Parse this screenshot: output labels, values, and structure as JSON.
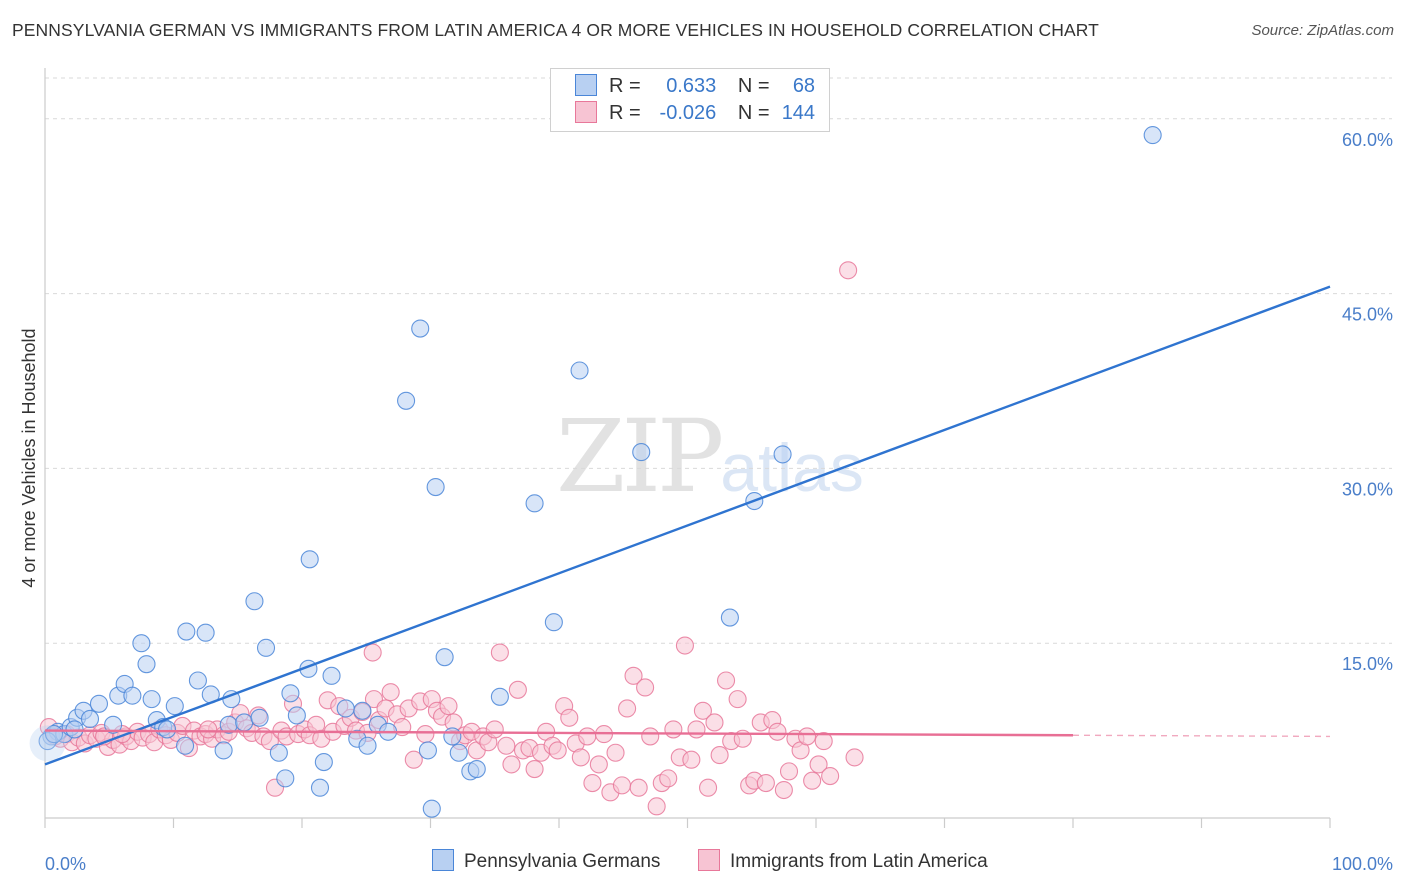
{
  "title": "PENNSYLVANIA GERMAN VS IMMIGRANTS FROM LATIN AMERICA 4 OR MORE VEHICLES IN HOUSEHOLD CORRELATION CHART",
  "source": "Source: ZipAtlas.com",
  "watermark": {
    "zip": "ZIP",
    "atlas": "atlas"
  },
  "colors": {
    "blue": "#4a86d8",
    "blue_fill": "#b8d0f2",
    "blue_line": "#2f74d0",
    "pink": "#e8789a",
    "pink_fill": "#f7c4d3",
    "pink_line": "#e86f95",
    "grid": "#d9d9d9",
    "axis": "#cccccc",
    "tick_text": "#4a7ec9"
  },
  "legend": {
    "rows": [
      {
        "r_label": "R =",
        "r_value": " 0.633",
        "n_label": "N =",
        "n_value": " 68"
      },
      {
        "r_label": "R =",
        "r_value": "-0.026",
        "n_label": "N =",
        "n_value": "144"
      }
    ]
  },
  "bottom_legend": {
    "blue": "Pennsylvania Germans",
    "pink": "Immigrants from Latin America"
  },
  "chart_data": {
    "type": "scatter",
    "xlabel": "",
    "ylabel": "4 or more Vehicles in Household",
    "xlim": [
      0,
      100
    ],
    "ylim": [
      0,
      63.5
    ],
    "x_tick_labels": [
      "0.0%",
      "100.0%"
    ],
    "y_ticks": [
      15,
      30,
      45,
      60
    ],
    "y_tick_labels": [
      "15.0%",
      "30.0%",
      "45.0%",
      "60.0%"
    ],
    "grid": true,
    "series": [
      {
        "name": "Pennsylvania Germans",
        "color": "#4a86d8",
        "r": 0.633,
        "n": 68,
        "trend": {
          "x0": 0,
          "y0": 4.6,
          "x1": 100,
          "y1": 45.6
        },
        "points": [
          [
            0.5,
            7.0
          ],
          [
            1.0,
            7.4
          ],
          [
            1.5,
            7.2
          ],
          [
            2.0,
            7.8
          ],
          [
            2.5,
            8.6
          ],
          [
            3.0,
            9.2
          ],
          [
            3.5,
            8.5
          ],
          [
            4.2,
            9.8
          ],
          [
            5.3,
            8.0
          ],
          [
            5.7,
            10.5
          ],
          [
            6.2,
            11.5
          ],
          [
            6.8,
            10.5
          ],
          [
            7.5,
            15.0
          ],
          [
            7.9,
            13.2
          ],
          [
            8.3,
            10.2
          ],
          [
            8.7,
            8.4
          ],
          [
            9.2,
            7.8
          ],
          [
            9.5,
            7.6
          ],
          [
            10.1,
            9.6
          ],
          [
            10.9,
            6.2
          ],
          [
            11.0,
            16.0
          ],
          [
            11.9,
            11.8
          ],
          [
            12.5,
            15.9
          ],
          [
            12.9,
            10.6
          ],
          [
            13.9,
            5.8
          ],
          [
            14.3,
            8.0
          ],
          [
            14.5,
            10.2
          ],
          [
            15.5,
            8.2
          ],
          [
            16.3,
            18.6
          ],
          [
            16.7,
            8.6
          ],
          [
            17.2,
            14.6
          ],
          [
            18.2,
            5.6
          ],
          [
            18.7,
            3.4
          ],
          [
            19.1,
            10.7
          ],
          [
            19.6,
            8.8
          ],
          [
            20.5,
            12.8
          ],
          [
            20.6,
            22.2
          ],
          [
            21.4,
            2.6
          ],
          [
            21.7,
            4.8
          ],
          [
            22.3,
            12.2
          ],
          [
            23.4,
            9.4
          ],
          [
            24.3,
            6.8
          ],
          [
            24.7,
            9.2
          ],
          [
            25.1,
            6.2
          ],
          [
            25.9,
            8.0
          ],
          [
            26.7,
            7.4
          ],
          [
            28.1,
            35.8
          ],
          [
            29.2,
            42.0
          ],
          [
            29.8,
            5.8
          ],
          [
            30.1,
            0.8
          ],
          [
            30.4,
            28.4
          ],
          [
            31.1,
            13.8
          ],
          [
            31.7,
            7.0
          ],
          [
            32.2,
            5.6
          ],
          [
            33.1,
            4.0
          ],
          [
            33.6,
            4.2
          ],
          [
            35.4,
            10.4
          ],
          [
            38.1,
            27.0
          ],
          [
            39.6,
            16.8
          ],
          [
            41.6,
            38.4
          ],
          [
            46.4,
            31.4
          ],
          [
            53.3,
            17.2
          ],
          [
            55.2,
            27.2
          ],
          [
            57.4,
            31.2
          ],
          [
            86.2,
            58.6
          ],
          [
            0.2,
            6.6
          ],
          [
            0.7,
            7.2
          ],
          [
            2.3,
            7.6
          ]
        ]
      },
      {
        "name": "Immigrants from Latin America",
        "color": "#e8789a",
        "r": -0.026,
        "n": 144,
        "trend": {
          "x0": 0,
          "y0": 7.5,
          "x1": 80,
          "y1": 7.1,
          "dash_to_x": 100,
          "dash_to_y": 7.0
        },
        "points": [
          [
            0.3,
            7.8
          ],
          [
            0.8,
            7.0
          ],
          [
            1.2,
            6.8
          ],
          [
            1.7,
            7.2
          ],
          [
            2.1,
            6.5
          ],
          [
            2.6,
            6.9
          ],
          [
            3.1,
            6.4
          ],
          [
            3.5,
            7.1
          ],
          [
            4.0,
            6.8
          ],
          [
            4.4,
            7.3
          ],
          [
            4.9,
            6.1
          ],
          [
            5.3,
            6.7
          ],
          [
            5.8,
            6.3
          ],
          [
            6.3,
            7.0
          ],
          [
            6.7,
            6.6
          ],
          [
            7.2,
            7.4
          ],
          [
            7.6,
            6.9
          ],
          [
            8.1,
            7.2
          ],
          [
            8.5,
            6.5
          ],
          [
            8.9,
            7.6
          ],
          [
            9.4,
            7.1
          ],
          [
            9.8,
            6.7
          ],
          [
            10.3,
            7.3
          ],
          [
            10.7,
            7.9
          ],
          [
            11.2,
            6.0
          ],
          [
            11.6,
            7.5
          ],
          [
            12.1,
            7.0
          ],
          [
            12.5,
            7.2
          ],
          [
            13.0,
            6.8
          ],
          [
            13.4,
            7.6
          ],
          [
            13.9,
            7.1
          ],
          [
            14.3,
            7.4
          ],
          [
            14.8,
            8.2
          ],
          [
            15.2,
            9.0
          ],
          [
            15.7,
            7.7
          ],
          [
            16.1,
            7.3
          ],
          [
            16.6,
            8.8
          ],
          [
            17.0,
            7.0
          ],
          [
            17.5,
            6.6
          ],
          [
            17.9,
            2.6
          ],
          [
            18.4,
            7.5
          ],
          [
            18.8,
            7.0
          ],
          [
            19.3,
            9.8
          ],
          [
            19.7,
            7.2
          ],
          [
            20.2,
            7.6
          ],
          [
            20.6,
            7.1
          ],
          [
            21.1,
            8.0
          ],
          [
            21.5,
            6.8
          ],
          [
            22.0,
            10.1
          ],
          [
            22.4,
            7.4
          ],
          [
            22.9,
            9.6
          ],
          [
            23.3,
            7.9
          ],
          [
            23.8,
            8.6
          ],
          [
            24.2,
            7.5
          ],
          [
            24.7,
            9.1
          ],
          [
            25.1,
            7.3
          ],
          [
            25.6,
            10.2
          ],
          [
            26.0,
            8.4
          ],
          [
            26.5,
            9.4
          ],
          [
            26.9,
            10.8
          ],
          [
            27.4,
            8.9
          ],
          [
            27.8,
            7.8
          ],
          [
            28.3,
            9.4
          ],
          [
            28.7,
            5.0
          ],
          [
            29.2,
            10.0
          ],
          [
            29.6,
            7.2
          ],
          [
            30.1,
            10.2
          ],
          [
            30.5,
            9.2
          ],
          [
            30.9,
            8.7
          ],
          [
            31.4,
            9.6
          ],
          [
            31.8,
            8.2
          ],
          [
            32.3,
            6.6
          ],
          [
            32.7,
            7.1
          ],
          [
            33.2,
            7.4
          ],
          [
            33.6,
            5.8
          ],
          [
            34.1,
            7.0
          ],
          [
            34.5,
            6.5
          ],
          [
            35.0,
            7.6
          ],
          [
            35.4,
            14.2
          ],
          [
            35.9,
            6.2
          ],
          [
            36.3,
            4.6
          ],
          [
            36.8,
            11.0
          ],
          [
            37.2,
            5.8
          ],
          [
            37.7,
            6.0
          ],
          [
            38.1,
            4.2
          ],
          [
            38.6,
            5.6
          ],
          [
            39.0,
            7.4
          ],
          [
            39.5,
            6.2
          ],
          [
            39.9,
            5.8
          ],
          [
            40.4,
            9.6
          ],
          [
            40.8,
            8.6
          ],
          [
            41.3,
            6.4
          ],
          [
            41.7,
            5.2
          ],
          [
            42.2,
            7.0
          ],
          [
            42.6,
            3.0
          ],
          [
            43.1,
            4.6
          ],
          [
            43.5,
            7.2
          ],
          [
            44.0,
            2.2
          ],
          [
            44.4,
            5.6
          ],
          [
            44.9,
            2.8
          ],
          [
            45.3,
            9.4
          ],
          [
            45.8,
            12.2
          ],
          [
            46.2,
            2.6
          ],
          [
            46.7,
            11.2
          ],
          [
            47.1,
            7.0
          ],
          [
            47.6,
            1.0
          ],
          [
            48.0,
            3.0
          ],
          [
            48.5,
            3.4
          ],
          [
            48.9,
            7.6
          ],
          [
            49.4,
            5.2
          ],
          [
            49.8,
            14.8
          ],
          [
            50.3,
            5.0
          ],
          [
            50.7,
            7.6
          ],
          [
            51.2,
            9.2
          ],
          [
            51.6,
            2.6
          ],
          [
            52.1,
            8.2
          ],
          [
            52.5,
            5.4
          ],
          [
            53.0,
            11.8
          ],
          [
            53.4,
            6.6
          ],
          [
            53.9,
            10.2
          ],
          [
            54.3,
            6.8
          ],
          [
            54.8,
            2.8
          ],
          [
            55.2,
            3.2
          ],
          [
            55.7,
            8.2
          ],
          [
            56.1,
            3.0
          ],
          [
            56.6,
            8.4
          ],
          [
            57.0,
            7.4
          ],
          [
            57.5,
            2.4
          ],
          [
            57.9,
            4.0
          ],
          [
            58.4,
            6.8
          ],
          [
            58.8,
            5.8
          ],
          [
            59.3,
            7.0
          ],
          [
            59.7,
            3.2
          ],
          [
            60.2,
            4.6
          ],
          [
            60.6,
            6.6
          ],
          [
            61.1,
            3.6
          ],
          [
            62.5,
            47.0
          ],
          [
            63.0,
            5.2
          ],
          [
            25.5,
            14.2
          ],
          [
            12.7,
            7.6
          ],
          [
            6.0,
            7.2
          ],
          [
            4.6,
            7.0
          ]
        ]
      }
    ]
  }
}
